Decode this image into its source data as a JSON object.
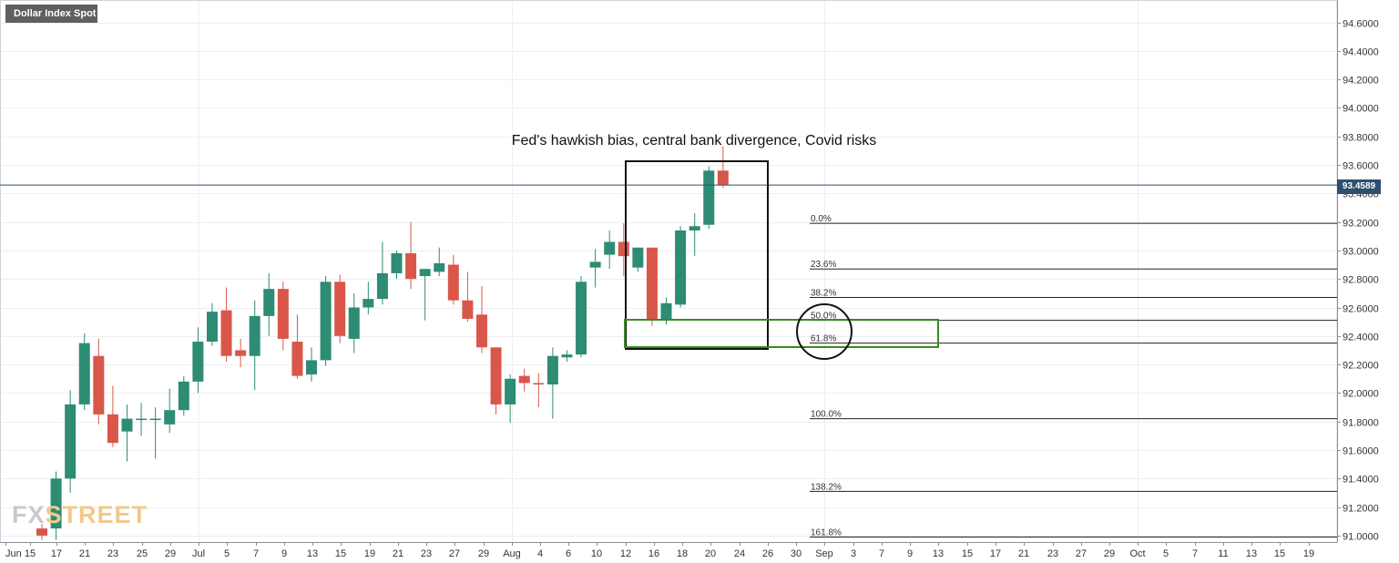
{
  "chart_data": {
    "type": "candlestick",
    "title": "Dollar Index Spot",
    "ylim": [
      91.0,
      94.7
    ],
    "yticks": [
      "94.6000",
      "94.4000",
      "94.2000",
      "94.0000",
      "93.8000",
      "93.6000",
      "93.4000",
      "93.2000",
      "93.0000",
      "92.8000",
      "92.6000",
      "92.4000",
      "92.2000",
      "92.0000",
      "91.8000",
      "91.6000",
      "91.4000",
      "91.2000",
      "91.0000"
    ],
    "x_tick_labels": [
      "Jun",
      "15",
      "17",
      "21",
      "23",
      "25",
      "29",
      "Jul",
      "5",
      "7",
      "9",
      "13",
      "15",
      "19",
      "21",
      "23",
      "27",
      "29",
      "Aug",
      "4",
      "6",
      "10",
      "12",
      "16",
      "18",
      "20",
      "24",
      "26",
      "30",
      "Sep",
      "3",
      "7",
      "9",
      "13",
      "15",
      "17",
      "21",
      "23",
      "27",
      "29",
      "Oct",
      "5",
      "7",
      "11",
      "13",
      "15",
      "19"
    ],
    "candles": [
      {
        "date": "Jun 15",
        "open": 91.05,
        "high": 91.08,
        "low": 90.97,
        "close": 91.0
      },
      {
        "date": "Jun 16",
        "open": 91.05,
        "high": 91.45,
        "low": 90.97,
        "close": 91.4
      },
      {
        "date": "Jun 17",
        "open": 91.4,
        "high": 92.02,
        "low": 91.3,
        "close": 91.92
      },
      {
        "date": "Jun 18",
        "open": 91.92,
        "high": 92.42,
        "low": 91.88,
        "close": 92.35
      },
      {
        "date": "Jun 21",
        "open": 92.26,
        "high": 92.38,
        "low": 91.78,
        "close": 91.85
      },
      {
        "date": "Jun 22",
        "open": 91.85,
        "high": 92.05,
        "low": 91.62,
        "close": 91.65
      },
      {
        "date": "Jun 23",
        "open": 91.73,
        "high": 91.92,
        "low": 91.52,
        "close": 91.82
      },
      {
        "date": "Jun 24",
        "open": 91.82,
        "high": 91.93,
        "low": 91.7,
        "close": 91.82
      },
      {
        "date": "Jun 25",
        "open": 91.82,
        "high": 91.9,
        "low": 91.54,
        "close": 91.82
      },
      {
        "date": "Jun 28",
        "open": 91.78,
        "high": 92.03,
        "low": 91.72,
        "close": 91.88
      },
      {
        "date": "Jun 29",
        "open": 91.88,
        "high": 92.12,
        "low": 91.84,
        "close": 92.08
      },
      {
        "date": "Jun 30",
        "open": 92.08,
        "high": 92.46,
        "low": 92.0,
        "close": 92.36
      },
      {
        "date": "Jul 1",
        "open": 92.36,
        "high": 92.63,
        "low": 92.33,
        "close": 92.57
      },
      {
        "date": "Jul 2",
        "open": 92.58,
        "high": 92.74,
        "low": 92.22,
        "close": 92.26
      },
      {
        "date": "Jul 5",
        "open": 92.3,
        "high": 92.38,
        "low": 92.18,
        "close": 92.26
      },
      {
        "date": "Jul 6",
        "open": 92.26,
        "high": 92.65,
        "low": 92.02,
        "close": 92.54
      },
      {
        "date": "Jul 7",
        "open": 92.54,
        "high": 92.84,
        "low": 92.4,
        "close": 92.73
      },
      {
        "date": "Jul 8",
        "open": 92.73,
        "high": 92.78,
        "low": 92.3,
        "close": 92.38
      },
      {
        "date": "Jul 9",
        "open": 92.36,
        "high": 92.55,
        "low": 92.1,
        "close": 92.12
      },
      {
        "date": "Jul 12",
        "open": 92.13,
        "high": 92.32,
        "low": 92.08,
        "close": 92.23
      },
      {
        "date": "Jul 13",
        "open": 92.23,
        "high": 92.82,
        "low": 92.19,
        "close": 92.78
      },
      {
        "date": "Jul 14",
        "open": 92.78,
        "high": 92.83,
        "low": 92.35,
        "close": 92.4
      },
      {
        "date": "Jul 15",
        "open": 92.38,
        "high": 92.7,
        "low": 92.28,
        "close": 92.6
      },
      {
        "date": "Jul 16",
        "open": 92.6,
        "high": 92.78,
        "low": 92.55,
        "close": 92.66
      },
      {
        "date": "Jul 19",
        "open": 92.66,
        "high": 93.06,
        "low": 92.62,
        "close": 92.84
      },
      {
        "date": "Jul 20",
        "open": 92.84,
        "high": 93.0,
        "low": 92.8,
        "close": 92.98
      },
      {
        "date": "Jul 21",
        "open": 92.98,
        "high": 93.2,
        "low": 92.73,
        "close": 92.8
      },
      {
        "date": "Jul 22",
        "open": 92.82,
        "high": 92.87,
        "low": 92.51,
        "close": 92.87
      },
      {
        "date": "Jul 23",
        "open": 92.85,
        "high": 93.02,
        "low": 92.82,
        "close": 92.91
      },
      {
        "date": "Jul 26",
        "open": 92.9,
        "high": 92.97,
        "low": 92.62,
        "close": 92.65
      },
      {
        "date": "Jul 27",
        "open": 92.65,
        "high": 92.85,
        "low": 92.5,
        "close": 92.52
      },
      {
        "date": "Jul 28",
        "open": 92.55,
        "high": 92.75,
        "low": 92.28,
        "close": 92.32
      },
      {
        "date": "Jul 29",
        "open": 92.32,
        "high": 92.32,
        "low": 91.85,
        "close": 91.92
      },
      {
        "date": "Jul 30",
        "open": 91.92,
        "high": 92.13,
        "low": 91.79,
        "close": 92.1
      },
      {
        "date": "Aug 2",
        "open": 92.12,
        "high": 92.17,
        "low": 92.01,
        "close": 92.07
      },
      {
        "date": "Aug 3",
        "open": 92.07,
        "high": 92.14,
        "low": 91.9,
        "close": 92.06
      },
      {
        "date": "Aug 4",
        "open": 92.06,
        "high": 92.32,
        "low": 91.82,
        "close": 92.26
      },
      {
        "date": "Aug 5",
        "open": 92.25,
        "high": 92.3,
        "low": 92.22,
        "close": 92.27
      },
      {
        "date": "Aug 6",
        "open": 92.27,
        "high": 92.82,
        "low": 92.25,
        "close": 92.78
      },
      {
        "date": "Aug 9",
        "open": 92.88,
        "high": 93.01,
        "low": 92.74,
        "close": 92.92
      },
      {
        "date": "Aug 10",
        "open": 92.97,
        "high": 93.14,
        "low": 92.87,
        "close": 93.06
      },
      {
        "date": "Aug 11",
        "open": 93.06,
        "high": 93.19,
        "low": 92.82,
        "close": 92.96
      },
      {
        "date": "Aug 12",
        "open": 92.88,
        "high": 93.02,
        "low": 92.85,
        "close": 93.02
      },
      {
        "date": "Aug 13",
        "open": 93.02,
        "high": 93.02,
        "low": 92.47,
        "close": 92.52
      },
      {
        "date": "Aug 16",
        "open": 92.52,
        "high": 92.67,
        "low": 92.48,
        "close": 92.63
      },
      {
        "date": "Aug 17",
        "open": 92.62,
        "high": 93.17,
        "low": 92.6,
        "close": 93.14
      },
      {
        "date": "Aug 18",
        "open": 93.14,
        "high": 93.26,
        "low": 92.96,
        "close": 93.17
      },
      {
        "date": "Aug 19",
        "open": 93.18,
        "high": 93.59,
        "low": 93.15,
        "close": 93.56
      },
      {
        "date": "Aug 20",
        "open": 93.56,
        "high": 93.73,
        "low": 93.44,
        "close": 93.46
      }
    ],
    "last_price": "93.4589",
    "fibonacci": [
      {
        "label": "0.0%",
        "price": 93.19
      },
      {
        "label": "23.6%",
        "price": 92.87
      },
      {
        "label": "38.2%",
        "price": 92.67
      },
      {
        "label": "50.0%",
        "price": 92.51
      },
      {
        "label": "61.8%",
        "price": 92.35
      },
      {
        "label": "100.0%",
        "price": 91.82
      },
      {
        "label": "138.2%",
        "price": 91.31
      },
      {
        "label": "161.8%",
        "price": 90.99
      }
    ],
    "annotations": [
      {
        "text": "Fed's hawkish bias, central bank divergence, Covid risks"
      }
    ],
    "colors": {
      "up": "#2e8b74",
      "down": "#d9574a",
      "box": "#111111",
      "zone": "#3a8a22",
      "price_line": "#2f4f6f"
    }
  },
  "watermark": {
    "part1": "FX",
    "part2": "STREET"
  }
}
